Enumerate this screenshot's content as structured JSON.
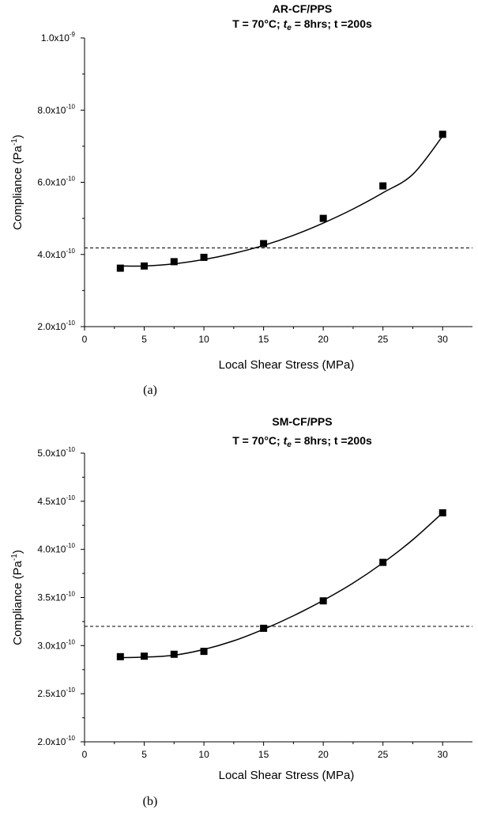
{
  "chart_data": [
    {
      "type": "scatter",
      "title_line1": "AR-CF/PPS",
      "title_line2": {
        "pre": "T = 70°C; ",
        "t": "t",
        "sub": "e",
        "post": " = 8hrs; t =200s"
      },
      "xlabel": "Local Shear Stress (MPa)",
      "ylabel": {
        "text": "Compliance (Pa",
        "sup": "-1",
        "close": ")"
      },
      "xlim": [
        0,
        32.5
      ],
      "ylim": [
        2e-10,
        1e-09
      ],
      "xticks": [
        0,
        5,
        10,
        15,
        20,
        25,
        30
      ],
      "yticks": [
        {
          "value": 2e-10,
          "mantissa": "2.0x10",
          "exp": "-10"
        },
        {
          "value": 4e-10,
          "mantissa": "4.0x10",
          "exp": "-10"
        },
        {
          "value": 6e-10,
          "mantissa": "6.0x10",
          "exp": "-10"
        },
        {
          "value": 8e-10,
          "mantissa": "8.0x10",
          "exp": "-10"
        },
        {
          "value": 1e-09,
          "mantissa": "1.0x10",
          "exp": "-9"
        }
      ],
      "points": [
        {
          "x": 3,
          "y": 3.62e-10
        },
        {
          "x": 5,
          "y": 3.68e-10
        },
        {
          "x": 7.5,
          "y": 3.8e-10
        },
        {
          "x": 10,
          "y": 3.92e-10
        },
        {
          "x": 15,
          "y": 4.3e-10
        },
        {
          "x": 20,
          "y": 5e-10
        },
        {
          "x": 25,
          "y": 5.9e-10
        },
        {
          "x": 30,
          "y": 7.33e-10
        }
      ],
      "fit_curve": [
        {
          "x": 3,
          "y": 3.68e-10
        },
        {
          "x": 5,
          "y": 3.68e-10
        },
        {
          "x": 7.5,
          "y": 3.74e-10
        },
        {
          "x": 10,
          "y": 3.86e-10
        },
        {
          "x": 12.5,
          "y": 4.03e-10
        },
        {
          "x": 15,
          "y": 4.25e-10
        },
        {
          "x": 17.5,
          "y": 4.53e-10
        },
        {
          "x": 20,
          "y": 4.87e-10
        },
        {
          "x": 22.5,
          "y": 5.26e-10
        },
        {
          "x": 25,
          "y": 5.71e-10
        },
        {
          "x": 27.5,
          "y": 6.22e-10
        },
        {
          "x": 30,
          "y": 7.28e-10
        }
      ],
      "reference_line_y": 4.18e-10,
      "caption": "(a)"
    },
    {
      "type": "scatter",
      "title_line1": "SM-CF/PPS",
      "title_line2": {
        "pre": "T = 70°C; ",
        "t": "t",
        "sub": "e",
        "post": " = 8hrs; t =200s"
      },
      "xlabel": "Local Shear Stress (MPa)",
      "ylabel": {
        "text": "Compliance (Pa",
        "sup": "-1",
        "close": ")"
      },
      "xlim": [
        0,
        32.5
      ],
      "ylim": [
        2e-10,
        5e-10
      ],
      "xticks": [
        0,
        5,
        10,
        15,
        20,
        25,
        30
      ],
      "yticks": [
        {
          "value": 2e-10,
          "mantissa": "2.0x10",
          "exp": "-10"
        },
        {
          "value": 2.5e-10,
          "mantissa": "2.5x10",
          "exp": "-10"
        },
        {
          "value": 3e-10,
          "mantissa": "3.0x10",
          "exp": "-10"
        },
        {
          "value": 3.5e-10,
          "mantissa": "3.5x10",
          "exp": "-10"
        },
        {
          "value": 4e-10,
          "mantissa": "4.0x10",
          "exp": "-10"
        },
        {
          "value": 4.5e-10,
          "mantissa": "4.5x10",
          "exp": "-10"
        },
        {
          "value": 5e-10,
          "mantissa": "5.0x10",
          "exp": "-10"
        }
      ],
      "points": [
        {
          "x": 3,
          "y": 2.885e-10
        },
        {
          "x": 5,
          "y": 2.89e-10
        },
        {
          "x": 7.5,
          "y": 2.91e-10
        },
        {
          "x": 10,
          "y": 2.94e-10
        },
        {
          "x": 15,
          "y": 3.18e-10
        },
        {
          "x": 20,
          "y": 3.465e-10
        },
        {
          "x": 25,
          "y": 3.865e-10
        },
        {
          "x": 30,
          "y": 4.38e-10
        }
      ],
      "fit_curve": [
        {
          "x": 3,
          "y": 2.875e-10
        },
        {
          "x": 5,
          "y": 2.88e-10
        },
        {
          "x": 7.5,
          "y": 2.9e-10
        },
        {
          "x": 10,
          "y": 2.96e-10
        },
        {
          "x": 12.5,
          "y": 3.05e-10
        },
        {
          "x": 15,
          "y": 3.17e-10
        },
        {
          "x": 17.5,
          "y": 3.31e-10
        },
        {
          "x": 20,
          "y": 3.47e-10
        },
        {
          "x": 22.5,
          "y": 3.65e-10
        },
        {
          "x": 25,
          "y": 3.86e-10
        },
        {
          "x": 27.5,
          "y": 4.1e-10
        },
        {
          "x": 30,
          "y": 4.38e-10
        }
      ],
      "reference_line_y": 3.2e-10,
      "caption": "(b)"
    }
  ]
}
